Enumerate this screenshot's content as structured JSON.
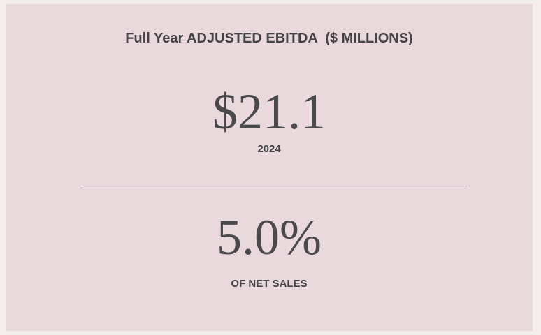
{
  "header": {
    "title": "Full Year ADJUSTED EBITDA  ($ MILLIONS)"
  },
  "metrics": [
    {
      "value": "$21.1",
      "label": "2024"
    },
    {
      "value": "5.0%",
      "label": "OF NET SALES"
    }
  ]
}
